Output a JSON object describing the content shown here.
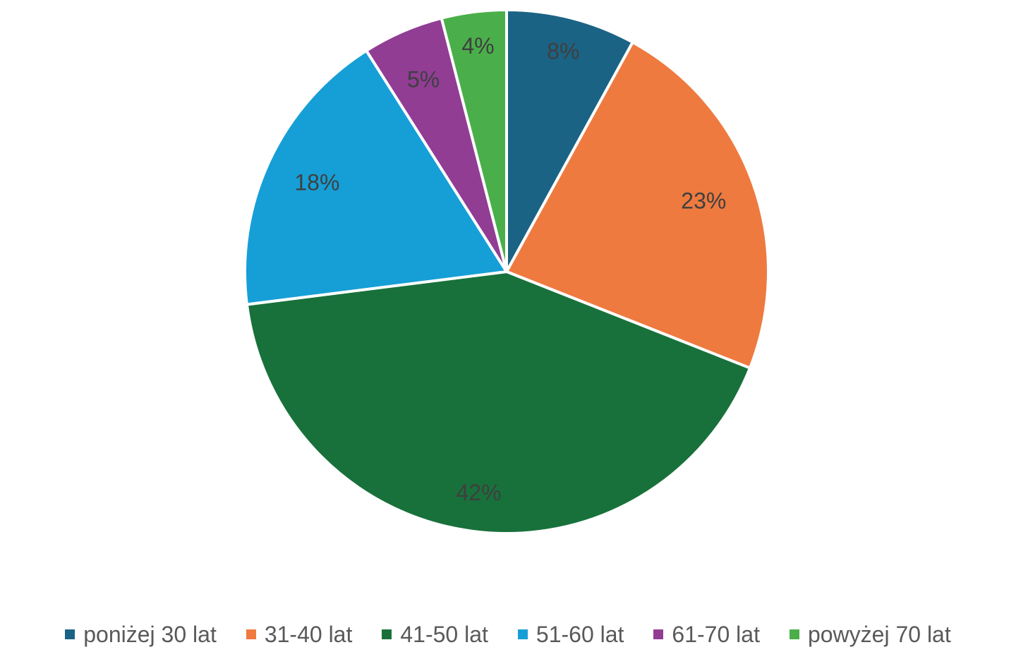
{
  "chart_data": {
    "type": "pie",
    "categories": [
      "poniżej 30 lat",
      "31-40 lat",
      "41-50 lat",
      "51-60 lat",
      "61-70 lat",
      "powyżej 70 lat"
    ],
    "values": [
      8,
      23,
      42,
      18,
      5,
      4
    ],
    "labels": [
      "8%",
      "23%",
      "42%",
      "18%",
      "5%",
      "4%"
    ],
    "colors": [
      "#1b6384",
      "#ee7a3f",
      "#18713b",
      "#169fd6",
      "#913d94",
      "#4aaf4a"
    ],
    "legend_position": "bottom",
    "start_angle": "12 o'clock",
    "direction": "clockwise"
  }
}
